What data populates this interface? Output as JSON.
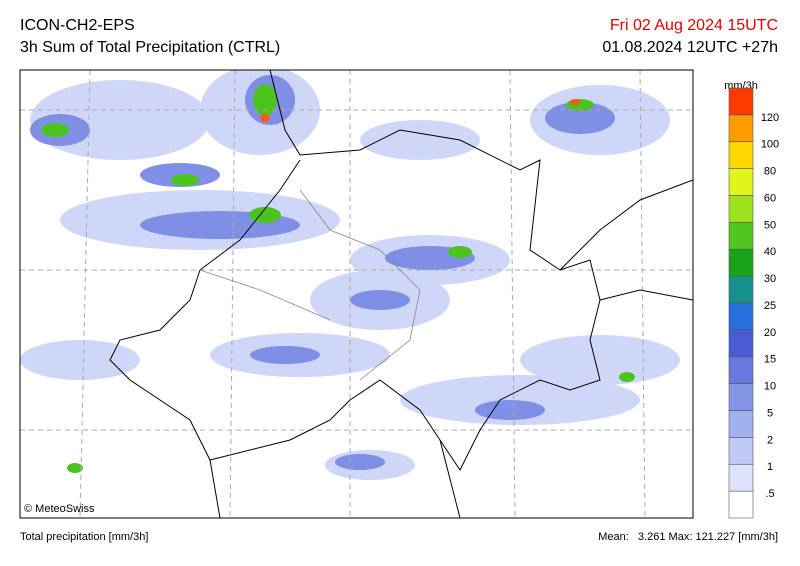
{
  "header": {
    "model": "ICON-CH2-EPS",
    "product": "3h Sum of Total Precipitation (CTRL)",
    "valid": "Fri 02 Aug 2024 15UTC",
    "run": "01.08.2024 12UTC +27h"
  },
  "legend": {
    "unit": "mm/3h",
    "levels": [
      ".5",
      "1",
      "2",
      "5",
      "10",
      "15",
      "20",
      "25",
      "30",
      "40",
      "50",
      "60",
      "80",
      "100",
      "120"
    ],
    "colors": [
      "#ffffff",
      "#dce3fa",
      "#bfcaf5",
      "#a2b0ee",
      "#8595e6",
      "#6778de",
      "#4a5cd6",
      "#2a6fe0",
      "#15938c",
      "#1aa31a",
      "#52c41e",
      "#9fe01e",
      "#e0f51e",
      "#ffd800",
      "#ff9a00",
      "#ff3a00"
    ]
  },
  "credit": "© MeteoSwiss",
  "footer": {
    "left": "Total precipitation [mm/3h]",
    "right": "Mean:   3.261 Max: 121.227 [mm/3h]"
  }
}
